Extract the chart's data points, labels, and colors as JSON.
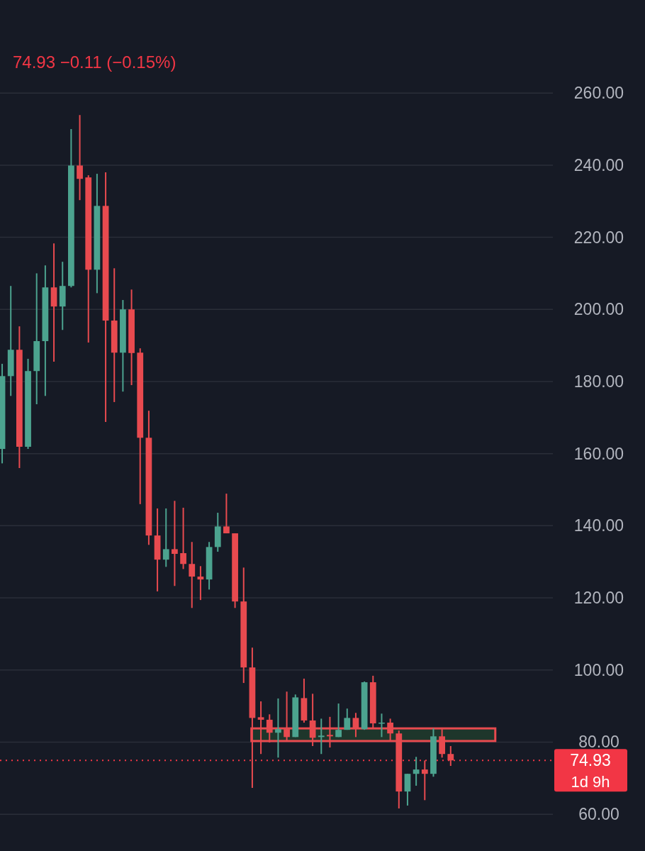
{
  "chart_data": {
    "type": "candlestick",
    "subtitle": "74.93 −0.11 (−0.15%)",
    "categories": [
      null,
      null,
      null,
      null,
      null,
      null,
      null,
      null,
      null,
      null,
      null,
      null,
      null,
      null,
      null,
      null,
      null,
      null,
      null,
      null,
      null,
      null,
      null,
      null,
      null,
      null,
      null,
      null,
      null,
      null,
      null,
      null,
      null,
      null,
      null,
      null,
      null,
      null,
      null,
      null,
      null,
      null,
      null,
      null,
      null,
      null,
      null,
      null,
      null,
      null,
      null,
      null,
      null,
      null,
      null,
      null,
      null,
      null,
      null,
      null,
      null,
      null,
      null,
      null
    ],
    "ohlc": [
      [
        161.3,
        184.9,
        157.3,
        181.5
      ],
      [
        181.5,
        206.5,
        176.0,
        188.8
      ],
      [
        188.8,
        195.3,
        156.0,
        161.9
      ],
      [
        161.9,
        186.3,
        161.3,
        182.9
      ],
      [
        182.9,
        210.0,
        173.7,
        191.2
      ],
      [
        191.2,
        212.2,
        176.0,
        206.1
      ],
      [
        206.1,
        218.3,
        185.5,
        200.8
      ],
      [
        200.8,
        213.2,
        194.3,
        206.5
      ],
      [
        206.5,
        250.0,
        206.1,
        239.9
      ],
      [
        239.9,
        253.9,
        230.3,
        236.2
      ],
      [
        236.6,
        237.2,
        190.8,
        211.0
      ],
      [
        211.0,
        237.6,
        204.5,
        228.7
      ],
      [
        228.7,
        238.0,
        168.8,
        196.9
      ],
      [
        196.9,
        211.4,
        174.3,
        188.0
      ],
      [
        188.0,
        202.6,
        177.2,
        200.0
      ],
      [
        200.0,
        205.5,
        179.0,
        187.9
      ],
      [
        188.0,
        189.2,
        146.0,
        164.4
      ],
      [
        164.4,
        171.9,
        134.7,
        137.3
      ],
      [
        137.3,
        144.8,
        121.8,
        130.6
      ],
      [
        130.6,
        144.8,
        128.6,
        133.5
      ],
      [
        133.5,
        146.9,
        123.3,
        132.2
      ],
      [
        132.4,
        145.0,
        128.0,
        129.4
      ],
      [
        129.4,
        135.5,
        117.2,
        125.9
      ],
      [
        125.9,
        128.8,
        119.4,
        125.1
      ],
      [
        125.1,
        135.5,
        122.3,
        134.1
      ],
      [
        134.1,
        143.6,
        132.8,
        139.8
      ],
      [
        139.8,
        148.9,
        137.9,
        137.9
      ],
      [
        137.9,
        137.9,
        117.2,
        119.0
      ],
      [
        119.0,
        128.4,
        96.4,
        100.7
      ],
      [
        100.7,
        106.2,
        67.3,
        86.7
      ],
      [
        86.9,
        91.3,
        76.7,
        86.2
      ],
      [
        86.2,
        87.7,
        79.9,
        82.6
      ],
      [
        82.6,
        92.1,
        75.7,
        83.6
      ],
      [
        83.6,
        94.0,
        80.3,
        81.4
      ],
      [
        81.4,
        93.2,
        81.4,
        92.4
      ],
      [
        92.2,
        97.6,
        85.4,
        86.0
      ],
      [
        86.0,
        93.4,
        78.9,
        81.2
      ],
      [
        81.4,
        86.5,
        76.7,
        81.8
      ],
      [
        82.0,
        87.0,
        78.5,
        81.6
      ],
      [
        81.4,
        90.7,
        81.4,
        83.4
      ],
      [
        83.4,
        89.3,
        83.4,
        86.7
      ],
      [
        86.7,
        88.1,
        81.4,
        83.6
      ],
      [
        83.6,
        96.8,
        83.4,
        96.6
      ],
      [
        96.6,
        98.4,
        83.8,
        85.2
      ],
      [
        85.2,
        87.9,
        81.4,
        85.4
      ],
      [
        85.4,
        86.5,
        80.1,
        82.4
      ],
      [
        82.4,
        83.2,
        61.6,
        66.3
      ],
      [
        66.3,
        71.2,
        62.4,
        71.2
      ],
      [
        71.2,
        75.9,
        67.9,
        72.4
      ],
      [
        72.4,
        74.9,
        63.9,
        71.2
      ],
      [
        71.2,
        83.8,
        70.4,
        81.6
      ],
      [
        81.6,
        83.6,
        75.7,
        76.7
      ],
      [
        76.7,
        78.9,
        73.4,
        74.93
      ],
      null,
      null,
      null,
      null,
      null,
      null,
      null,
      null,
      null,
      null,
      null
    ],
    "colors": [
      "#4ca38f",
      "#4ca38f",
      "#e84a4f",
      "#4ca38f",
      "#4ca38f",
      "#4ca38f",
      "#e84a4f",
      "#4ca38f",
      "#4ca38f",
      "#e84a4f",
      "#e84a4f",
      "#4ca38f",
      "#e84a4f",
      "#e84a4f",
      "#4ca38f",
      "#e84a4f",
      "#e84a4f",
      "#e84a4f",
      "#e84a4f",
      "#4ca38f",
      "#e84a4f",
      "#e84a4f",
      "#e84a4f",
      "#e84a4f",
      "#4ca38f",
      "#4ca38f",
      "#e84a4f",
      "#e84a4f",
      "#e84a4f",
      "#e84a4f",
      "#e84a4f",
      "#e84a4f",
      "#4ca38f",
      "#e84a4f",
      "#4ca38f",
      "#e84a4f",
      "#e84a4f",
      "#4ca38f",
      "#e84a4f",
      "#4ca38f",
      "#4ca38f",
      "#e84a4f",
      "#4ca38f",
      "#e84a4f",
      "#4ca38f",
      "#e84a4f",
      "#e84a4f",
      "#4ca38f",
      "#4ca38f",
      "#e84a4f",
      "#4ca38f",
      "#e84a4f",
      "#e84a4f",
      null,
      null,
      null,
      null,
      null,
      null,
      null,
      null,
      null,
      null,
      null
    ],
    "ylim": [
      49.8,
      285.8
    ],
    "yticks": [
      {
        "value": 60,
        "label": "60.00"
      },
      {
        "value": 80,
        "label": "80.00"
      },
      {
        "value": 100,
        "label": "100.00"
      },
      {
        "value": 120,
        "label": "120.00"
      },
      {
        "value": 140,
        "label": "140.00"
      },
      {
        "value": 160,
        "label": "160.00"
      },
      {
        "value": 180,
        "label": "180.00"
      },
      {
        "value": 200,
        "label": "200.00"
      },
      {
        "value": 220,
        "label": "220.00"
      },
      {
        "value": 240,
        "label": "240.00"
      },
      {
        "value": 260,
        "label": "260.00"
      }
    ],
    "grid": "y",
    "bands": [
      {
        "axis": "y",
        "from": 80.3,
        "to": 83.8,
        "color": "#e84a4f"
      }
    ],
    "ref_lines": [
      {
        "axis": "y",
        "value": 74.93,
        "label": "74.93",
        "color": "#f23645",
        "line_style": "dotted"
      }
    ],
    "annotations": [
      "1d 9h"
    ]
  }
}
